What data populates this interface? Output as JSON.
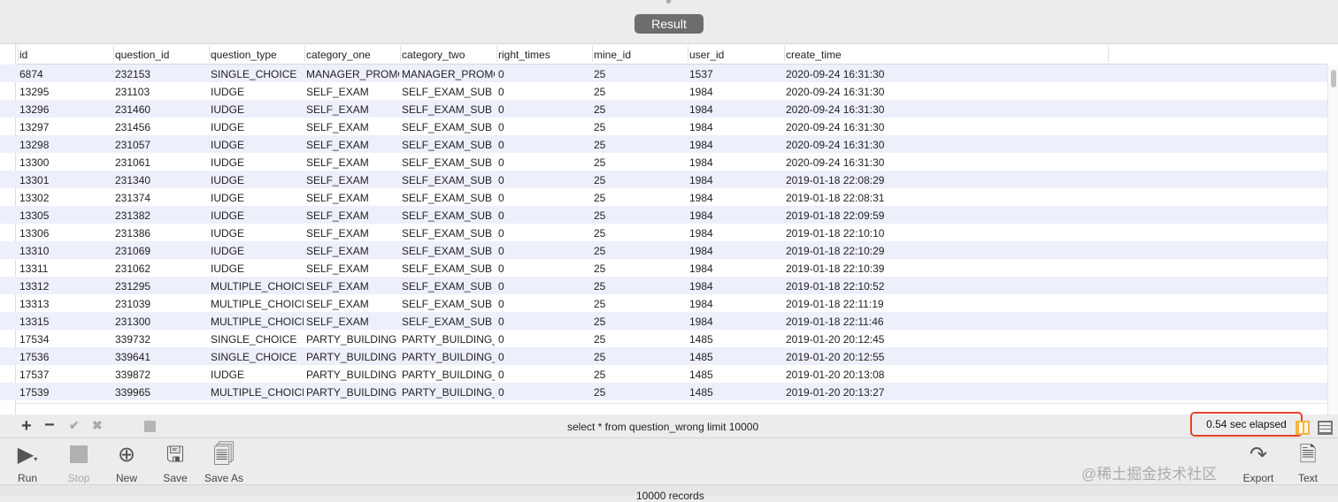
{
  "result_button": "Result",
  "table": {
    "columns": [
      "id",
      "question_id",
      "question_type",
      "category_one",
      "category_two",
      "right_times",
      "mine_id",
      "user_id",
      "create_time"
    ],
    "rows": [
      [
        "6874",
        "232153",
        "SINGLE_CHOICE",
        "MANAGER_PROMO",
        "MANAGER_PROMO",
        "0",
        "25",
        "1537",
        "2020-09-24 16:31:30"
      ],
      [
        "13295",
        "231103",
        "IUDGE",
        "SELF_EXAM",
        "SELF_EXAM_SUB",
        "0",
        "25",
        "1984",
        "2020-09-24 16:31:30"
      ],
      [
        "13296",
        "231460",
        "IUDGE",
        "SELF_EXAM",
        "SELF_EXAM_SUB",
        "0",
        "25",
        "1984",
        "2020-09-24 16:31:30"
      ],
      [
        "13297",
        "231456",
        "IUDGE",
        "SELF_EXAM",
        "SELF_EXAM_SUB",
        "0",
        "25",
        "1984",
        "2020-09-24 16:31:30"
      ],
      [
        "13298",
        "231057",
        "IUDGE",
        "SELF_EXAM",
        "SELF_EXAM_SUB",
        "0",
        "25",
        "1984",
        "2020-09-24 16:31:30"
      ],
      [
        "13300",
        "231061",
        "IUDGE",
        "SELF_EXAM",
        "SELF_EXAM_SUB",
        "0",
        "25",
        "1984",
        "2020-09-24 16:31:30"
      ],
      [
        "13301",
        "231340",
        "IUDGE",
        "SELF_EXAM",
        "SELF_EXAM_SUB",
        "0",
        "25",
        "1984",
        "2019-01-18 22:08:29"
      ],
      [
        "13302",
        "231374",
        "IUDGE",
        "SELF_EXAM",
        "SELF_EXAM_SUB",
        "0",
        "25",
        "1984",
        "2019-01-18 22:08:31"
      ],
      [
        "13305",
        "231382",
        "IUDGE",
        "SELF_EXAM",
        "SELF_EXAM_SUB",
        "0",
        "25",
        "1984",
        "2019-01-18 22:09:59"
      ],
      [
        "13306",
        "231386",
        "IUDGE",
        "SELF_EXAM",
        "SELF_EXAM_SUB",
        "0",
        "25",
        "1984",
        "2019-01-18 22:10:10"
      ],
      [
        "13310",
        "231069",
        "IUDGE",
        "SELF_EXAM",
        "SELF_EXAM_SUB",
        "0",
        "25",
        "1984",
        "2019-01-18 22:10:29"
      ],
      [
        "13311",
        "231062",
        "IUDGE",
        "SELF_EXAM",
        "SELF_EXAM_SUB",
        "0",
        "25",
        "1984",
        "2019-01-18 22:10:39"
      ],
      [
        "13312",
        "231295",
        "MULTIPLE_CHOICE",
        "SELF_EXAM",
        "SELF_EXAM_SUB",
        "0",
        "25",
        "1984",
        "2019-01-18 22:10:52"
      ],
      [
        "13313",
        "231039",
        "MULTIPLE_CHOICE",
        "SELF_EXAM",
        "SELF_EXAM_SUB",
        "0",
        "25",
        "1984",
        "2019-01-18 22:11:19"
      ],
      [
        "13315",
        "231300",
        "MULTIPLE_CHOICE",
        "SELF_EXAM",
        "SELF_EXAM_SUB",
        "0",
        "25",
        "1984",
        "2019-01-18 22:11:46"
      ],
      [
        "17534",
        "339732",
        "SINGLE_CHOICE",
        "PARTY_BUILDING",
        "PARTY_BUILDING_",
        "0",
        "25",
        "1485",
        "2019-01-20 20:12:45"
      ],
      [
        "17536",
        "339641",
        "SINGLE_CHOICE",
        "PARTY_BUILDING",
        "PARTY_BUILDING_",
        "0",
        "25",
        "1485",
        "2019-01-20 20:12:55"
      ],
      [
        "17537",
        "339872",
        "IUDGE",
        "PARTY_BUILDING",
        "PARTY_BUILDING_",
        "0",
        "25",
        "1485",
        "2019-01-20 20:13:08"
      ],
      [
        "17539",
        "339965",
        "MULTIPLE_CHOICE",
        "PARTY_BUILDING",
        "PARTY_BUILDING_",
        "0",
        "25",
        "1485",
        "2019-01-20 20:13:27"
      ]
    ]
  },
  "query": "select * from question_wrong  limit 10000",
  "elapsed": "0.54 sec elapsed",
  "toolbar": {
    "run": "Run",
    "stop": "Stop",
    "new": "New",
    "save": "Save",
    "save_as": "Save As",
    "export": "Export",
    "text": "Text"
  },
  "status": "10000 records",
  "watermark": "@稀土掘金技术社区",
  "colors": {
    "highlight": "#e8412c",
    "row_alt": "#edf0fb",
    "button": "#6d6d6d"
  }
}
